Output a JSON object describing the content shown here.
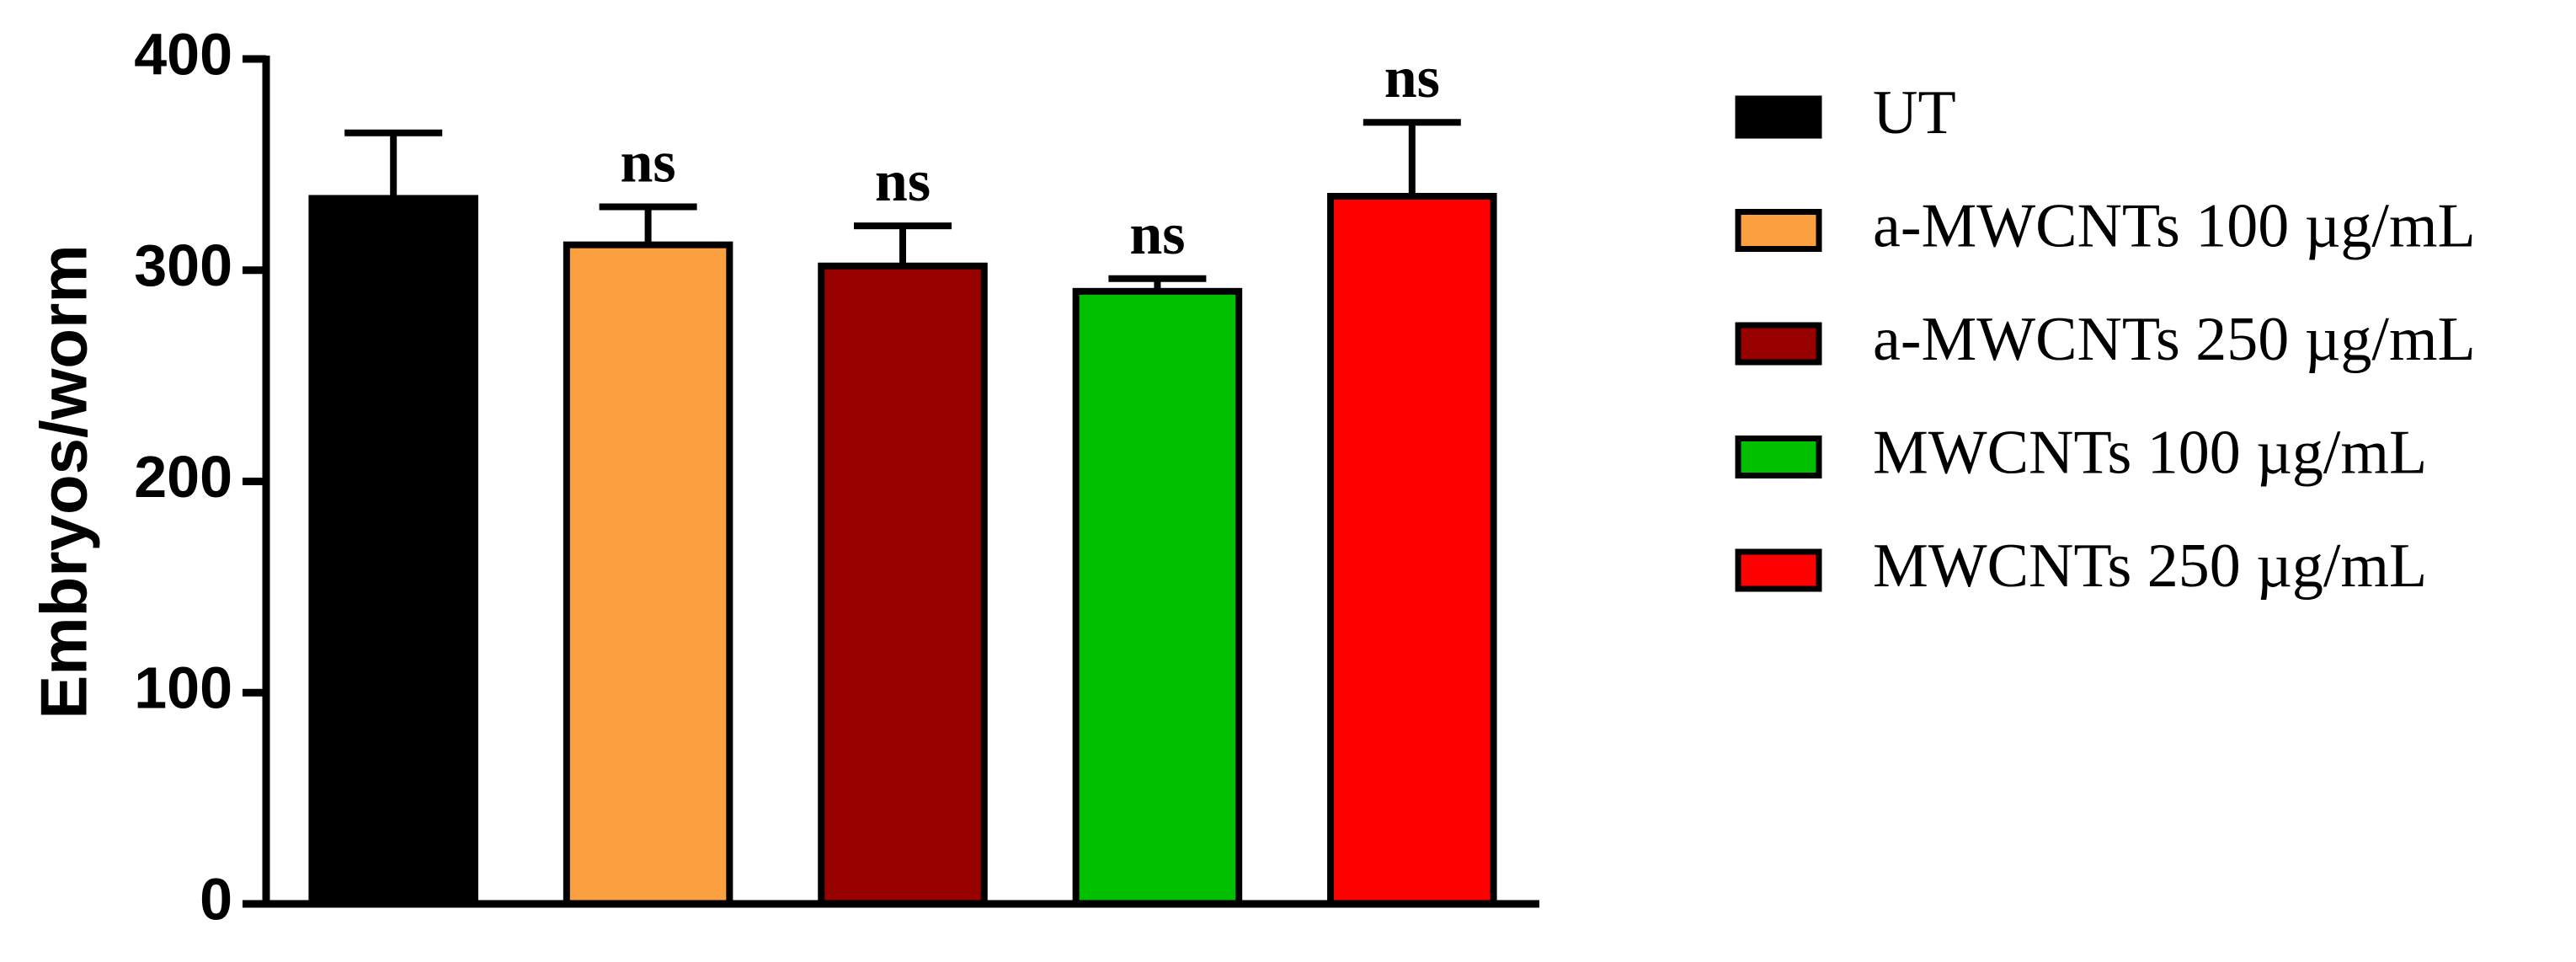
{
  "chart_data": {
    "type": "bar",
    "y_label": "Embryos/worm",
    "categories": [
      "UT",
      "a-MWCNTs 100 µg/mL",
      "a-MWCNTs 250 µg/mL",
      "MWCNTs 100 µg/mL",
      "MWCNTs 250 µg/mL"
    ],
    "values": [
      334,
      312,
      302,
      290,
      335
    ],
    "errors": [
      31,
      18,
      19,
      6,
      35
    ],
    "colors": [
      "#000000",
      "#fba040",
      "#990000",
      "#00c000",
      "#ff0000"
    ],
    "annotations": [
      null,
      "ns",
      "ns",
      "ns",
      "ns"
    ],
    "ylim": [
      0,
      400
    ],
    "yticks": [
      0,
      100,
      200,
      300,
      400
    ]
  }
}
